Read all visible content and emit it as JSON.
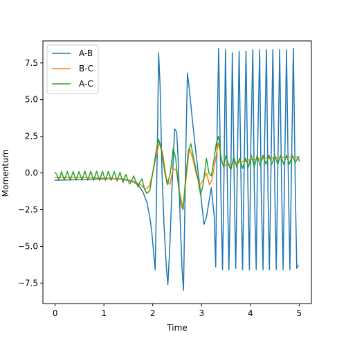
{
  "chart_data": {
    "type": "line",
    "title": "",
    "xlabel": "Time",
    "ylabel": "Momentum",
    "xlim": [
      -0.25,
      5.25
    ],
    "ylim": [
      -8.9,
      9.0
    ],
    "xticks": [
      0,
      1,
      2,
      3,
      4,
      5
    ],
    "xtick_labels": [
      "0",
      "1",
      "2",
      "3",
      "4",
      "5"
    ],
    "yticks": [
      -7.5,
      -5.0,
      -2.5,
      0.0,
      2.5,
      5.0,
      7.5
    ],
    "ytick_labels": [
      "−7.5",
      "−5.0",
      "−2.5",
      "0.0",
      "2.5",
      "5.0",
      "7.5"
    ],
    "grid": false,
    "legend_position": "top-left",
    "series": [
      {
        "name": "A-B",
        "color": "#1f77b4",
        "points": [
          [
            0.0,
            -0.5
          ],
          [
            0.5,
            -0.45
          ],
          [
            1.0,
            -0.4
          ],
          [
            1.3,
            -0.4
          ],
          [
            1.5,
            -0.5
          ],
          [
            1.6,
            -0.6
          ],
          [
            1.7,
            -0.8
          ],
          [
            1.8,
            -1.3
          ],
          [
            1.88,
            -2.0
          ],
          [
            1.94,
            -3.0
          ],
          [
            1.98,
            -4.0
          ],
          [
            2.02,
            -5.5
          ],
          [
            2.05,
            -6.6
          ],
          [
            2.07,
            -3.0
          ],
          [
            2.1,
            3.0
          ],
          [
            2.12,
            8.2
          ],
          [
            2.15,
            6.0
          ],
          [
            2.19,
            0.0
          ],
          [
            2.23,
            -3.5
          ],
          [
            2.28,
            -6.5
          ],
          [
            2.31,
            -7.6
          ],
          [
            2.35,
            -5.0
          ],
          [
            2.4,
            -0.5
          ],
          [
            2.45,
            3.0
          ],
          [
            2.49,
            2.8
          ],
          [
            2.52,
            1.0
          ],
          [
            2.56,
            -3.0
          ],
          [
            2.6,
            -6.5
          ],
          [
            2.63,
            -8.0
          ],
          [
            2.65,
            -4.0
          ],
          [
            2.68,
            2.0
          ],
          [
            2.71,
            6.8
          ],
          [
            2.74,
            6.0
          ],
          [
            2.8,
            4.0
          ],
          [
            2.88,
            1.5
          ],
          [
            2.95,
            -0.5
          ],
          [
            3.0,
            -2.0
          ],
          [
            3.05,
            -3.5
          ],
          [
            3.1,
            -3.0
          ],
          [
            3.15,
            -2.0
          ],
          [
            3.2,
            -1.0
          ],
          [
            3.26,
            -3.0
          ],
          [
            3.29,
            -6.4
          ],
          [
            3.32,
            3.0
          ],
          [
            3.35,
            8.5
          ],
          [
            3.4,
            -2.0
          ],
          [
            3.43,
            -6.6
          ],
          [
            3.46,
            0.0
          ],
          [
            3.49,
            8.4
          ],
          [
            3.52,
            1.0
          ],
          [
            3.56,
            -6.6
          ],
          [
            3.6,
            0.0
          ],
          [
            3.63,
            8.2
          ],
          [
            3.67,
            -1.0
          ],
          [
            3.7,
            -6.5
          ],
          [
            3.74,
            2.0
          ],
          [
            3.77,
            8.3
          ],
          [
            3.81,
            -1.0
          ],
          [
            3.84,
            -6.6
          ],
          [
            3.88,
            2.0
          ],
          [
            3.91,
            8.3
          ],
          [
            3.95,
            -1.0
          ],
          [
            3.98,
            -6.6
          ],
          [
            4.01,
            2.0
          ],
          [
            4.05,
            8.4
          ],
          [
            4.08,
            -1.0
          ],
          [
            4.12,
            -6.6
          ],
          [
            4.15,
            2.0
          ],
          [
            4.19,
            8.4
          ],
          [
            4.22,
            -1.0
          ],
          [
            4.26,
            -6.6
          ],
          [
            4.29,
            2.0
          ],
          [
            4.33,
            8.4
          ],
          [
            4.36,
            -1.0
          ],
          [
            4.39,
            -6.6
          ],
          [
            4.43,
            2.0
          ],
          [
            4.46,
            8.4
          ],
          [
            4.5,
            -1.0
          ],
          [
            4.53,
            -6.6
          ],
          [
            4.57,
            2.0
          ],
          [
            4.6,
            8.4
          ],
          [
            4.64,
            -1.0
          ],
          [
            4.67,
            -6.6
          ],
          [
            4.71,
            2.0
          ],
          [
            4.74,
            8.4
          ],
          [
            4.78,
            -1.0
          ],
          [
            4.81,
            -6.6
          ],
          [
            4.85,
            2.0
          ],
          [
            4.88,
            8.5
          ],
          [
            4.92,
            -1.0
          ],
          [
            4.95,
            -6.5
          ],
          [
            4.98,
            -6.3
          ]
        ]
      },
      {
        "name": "B-C",
        "color": "#ff7f0e",
        "points": [
          [
            0.0,
            -0.3
          ],
          [
            0.5,
            -0.3
          ],
          [
            1.0,
            -0.35
          ],
          [
            1.4,
            -0.4
          ],
          [
            1.6,
            -0.55
          ],
          [
            1.75,
            -0.8
          ],
          [
            1.85,
            -1.1
          ],
          [
            1.93,
            -0.9
          ],
          [
            2.0,
            0.0
          ],
          [
            2.08,
            1.3
          ],
          [
            2.14,
            2.1
          ],
          [
            2.2,
            1.4
          ],
          [
            2.28,
            -0.4
          ],
          [
            2.35,
            -0.8
          ],
          [
            2.42,
            0.3
          ],
          [
            2.48,
            0.2
          ],
          [
            2.55,
            -1.3
          ],
          [
            2.62,
            -2.4
          ],
          [
            2.68,
            -0.5
          ],
          [
            2.75,
            1.7
          ],
          [
            2.82,
            1.0
          ],
          [
            2.9,
            -0.2
          ],
          [
            2.97,
            -0.8
          ],
          [
            3.03,
            -0.5
          ],
          [
            3.1,
            0.0
          ],
          [
            3.16,
            -0.8
          ],
          [
            3.21,
            -0.5
          ],
          [
            3.28,
            0.8
          ],
          [
            3.34,
            2.0
          ],
          [
            3.38,
            1.5
          ],
          [
            3.43,
            0.6
          ],
          [
            3.5,
            0.5
          ],
          [
            3.7,
            0.7
          ],
          [
            4.0,
            0.9
          ],
          [
            4.3,
            1.0
          ],
          [
            4.6,
            1.05
          ],
          [
            5.0,
            1.1
          ]
        ]
      },
      {
        "name": "A-C",
        "color": "#2ca02c",
        "points": [
          [
            0.0,
            0.05
          ],
          [
            0.04,
            -0.15
          ],
          [
            0.07,
            -0.45
          ],
          [
            0.1,
            -0.3
          ],
          [
            0.13,
            0.1
          ],
          [
            0.16,
            -0.2
          ],
          [
            0.19,
            -0.5
          ],
          [
            0.22,
            -0.2
          ],
          [
            0.25,
            0.1
          ],
          [
            0.28,
            -0.2
          ],
          [
            0.31,
            -0.5
          ],
          [
            0.34,
            -0.2
          ],
          [
            0.37,
            0.1
          ],
          [
            0.4,
            -0.2
          ],
          [
            0.43,
            -0.5
          ],
          [
            0.46,
            -0.2
          ],
          [
            0.49,
            0.1
          ],
          [
            0.52,
            -0.2
          ],
          [
            0.55,
            -0.5
          ],
          [
            0.58,
            -0.2
          ],
          [
            0.61,
            0.12
          ],
          [
            0.64,
            -0.2
          ],
          [
            0.67,
            -0.5
          ],
          [
            0.7,
            -0.2
          ],
          [
            0.73,
            0.12
          ],
          [
            0.76,
            -0.2
          ],
          [
            0.79,
            -0.5
          ],
          [
            0.82,
            -0.2
          ],
          [
            0.85,
            0.12
          ],
          [
            0.88,
            -0.2
          ],
          [
            0.91,
            -0.5
          ],
          [
            0.94,
            -0.2
          ],
          [
            0.97,
            0.12
          ],
          [
            1.0,
            -0.2
          ],
          [
            1.03,
            -0.5
          ],
          [
            1.06,
            -0.2
          ],
          [
            1.09,
            0.12
          ],
          [
            1.12,
            -0.2
          ],
          [
            1.15,
            -0.5
          ],
          [
            1.18,
            -0.2
          ],
          [
            1.21,
            0.1
          ],
          [
            1.24,
            -0.2
          ],
          [
            1.27,
            -0.55
          ],
          [
            1.3,
            -0.25
          ],
          [
            1.33,
            0.05
          ],
          [
            1.36,
            -0.3
          ],
          [
            1.39,
            -0.65
          ],
          [
            1.42,
            -0.35
          ],
          [
            1.45,
            -0.1
          ],
          [
            1.49,
            -0.5
          ],
          [
            1.53,
            -0.75
          ],
          [
            1.57,
            -0.5
          ],
          [
            1.61,
            -0.2
          ],
          [
            1.66,
            -0.65
          ],
          [
            1.7,
            -0.95
          ],
          [
            1.74,
            -0.6
          ],
          [
            1.78,
            -0.4
          ],
          [
            1.83,
            -1.1
          ],
          [
            1.88,
            -1.4
          ],
          [
            1.94,
            -1.2
          ],
          [
            2.0,
            0.0
          ],
          [
            2.07,
            1.5
          ],
          [
            2.12,
            2.3
          ],
          [
            2.18,
            1.5
          ],
          [
            2.25,
            0.0
          ],
          [
            2.3,
            -0.8
          ],
          [
            2.36,
            0.0
          ],
          [
            2.42,
            1.7
          ],
          [
            2.47,
            1.0
          ],
          [
            2.53,
            -1.0
          ],
          [
            2.58,
            -2.2
          ],
          [
            2.62,
            -2.5
          ],
          [
            2.67,
            -0.5
          ],
          [
            2.73,
            1.5
          ],
          [
            2.78,
            2.0
          ],
          [
            2.85,
            0.8
          ],
          [
            2.92,
            -0.3
          ],
          [
            2.98,
            -1.5
          ],
          [
            3.03,
            -0.8
          ],
          [
            3.1,
            1.0
          ],
          [
            3.15,
            0.0
          ],
          [
            3.2,
            -0.2
          ],
          [
            3.25,
            0.8
          ],
          [
            3.3,
            2.0
          ],
          [
            3.35,
            2.5
          ],
          [
            3.4,
            1.0
          ],
          [
            3.45,
            0.4
          ],
          [
            3.5,
            1.2
          ],
          [
            3.55,
            0.6
          ],
          [
            3.6,
            0.2
          ],
          [
            3.66,
            1.1
          ],
          [
            3.72,
            0.4
          ],
          [
            3.78,
            1.0
          ],
          [
            3.84,
            0.3
          ],
          [
            3.9,
            1.0
          ],
          [
            3.96,
            0.4
          ],
          [
            4.02,
            1.2
          ],
          [
            4.08,
            0.4
          ],
          [
            4.14,
            1.2
          ],
          [
            4.2,
            0.5
          ],
          [
            4.26,
            1.2
          ],
          [
            4.32,
            0.6
          ],
          [
            4.38,
            1.2
          ],
          [
            4.44,
            0.6
          ],
          [
            4.5,
            1.2
          ],
          [
            4.56,
            0.6
          ],
          [
            4.62,
            1.2
          ],
          [
            4.68,
            0.6
          ],
          [
            4.74,
            1.2
          ],
          [
            4.8,
            0.6
          ],
          [
            4.86,
            1.2
          ],
          [
            4.92,
            0.7
          ],
          [
            4.98,
            1.1
          ],
          [
            5.0,
            0.8
          ]
        ]
      }
    ]
  }
}
